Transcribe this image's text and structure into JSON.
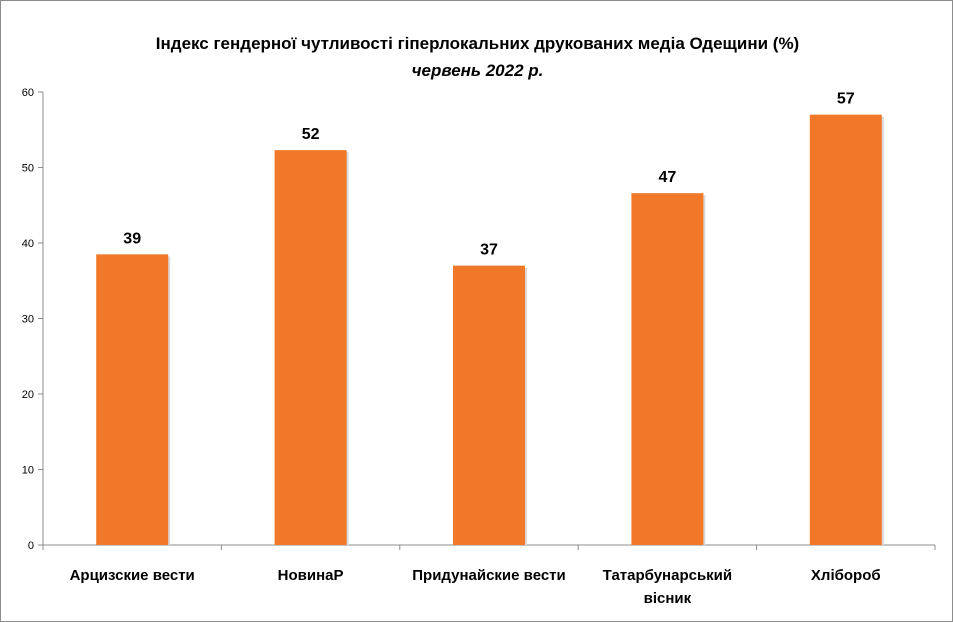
{
  "chart_data": {
    "type": "bar",
    "title": "Індекс гендерної чутливості гіперлокальних  друкованих медіа Одещини (%)",
    "subtitle": "червень 2022 р.",
    "categories": [
      "Арцизские вести",
      "НовинаР",
      "Придунайские вести",
      "Татарбунарський вісник",
      "Хлібороб"
    ],
    "values": [
      38.5,
      52.3,
      37,
      46.6,
      57
    ],
    "data_labels": [
      "39",
      "52",
      "37",
      "47",
      "57"
    ],
    "ylim": [
      0,
      60
    ],
    "yticks": [
      0,
      10,
      20,
      30,
      40,
      50,
      60
    ],
    "grid": false,
    "legend": "none",
    "bar_color": "#F07828"
  }
}
